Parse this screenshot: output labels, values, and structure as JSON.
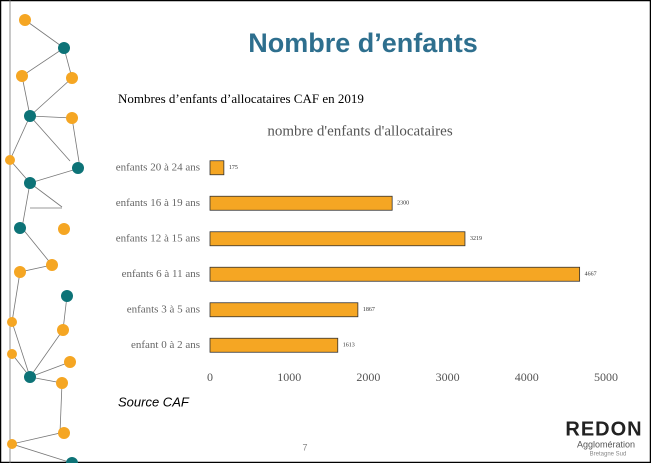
{
  "slide_title": "Nombre d’enfants",
  "subtitle": "Nombres d’enfants d’allocataires CAF en 2019",
  "source": "Source CAF",
  "page_number": "7",
  "logo": {
    "name": "REDON",
    "tagline": "Agglomération",
    "region": "Bretagne Sud"
  },
  "chart_data": {
    "type": "bar",
    "orientation": "horizontal",
    "title": "nombre d'enfants d'allocataires",
    "categories": [
      "enfants 20 à 24 ans",
      "enfants 16 à 19 ans",
      "enfants 12 à 15 ans",
      "enfants 6 à 11 ans",
      "enfants 3 à 5 ans",
      "enfant 0 à 2 ans"
    ],
    "values": [
      175,
      2300,
      3219,
      4667,
      1867,
      1613
    ],
    "color": "#f5a623",
    "xlim": [
      0,
      5000
    ],
    "xticks": [
      0,
      1000,
      2000,
      3000,
      4000,
      5000
    ],
    "grid": false
  }
}
